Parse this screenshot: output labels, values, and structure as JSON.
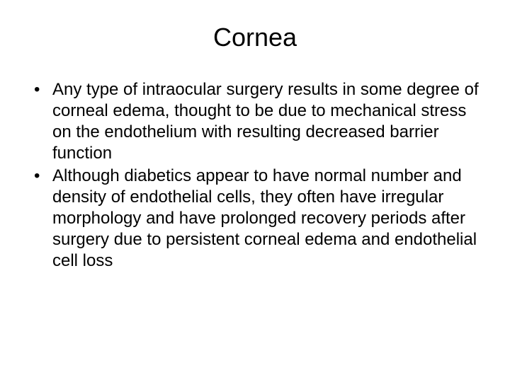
{
  "slide": {
    "title": "Cornea",
    "bullets": [
      {
        "marker": "•",
        "text": "Any type of intraocular surgery results in some degree of corneal edema, thought to be due to mechanical stress on the endothelium with resulting decreased barrier function"
      },
      {
        "marker": "•",
        "text": "Although diabetics appear to have normal number and density of endothelial cells, they often have irregular morphology and have prolonged recovery periods after surgery due to persistent corneal edema and endothelial cell loss"
      }
    ],
    "style": {
      "background_color": "#ffffff",
      "text_color": "#000000",
      "title_fontsize": 36,
      "body_fontsize": 24,
      "font_family": "Arial"
    }
  }
}
